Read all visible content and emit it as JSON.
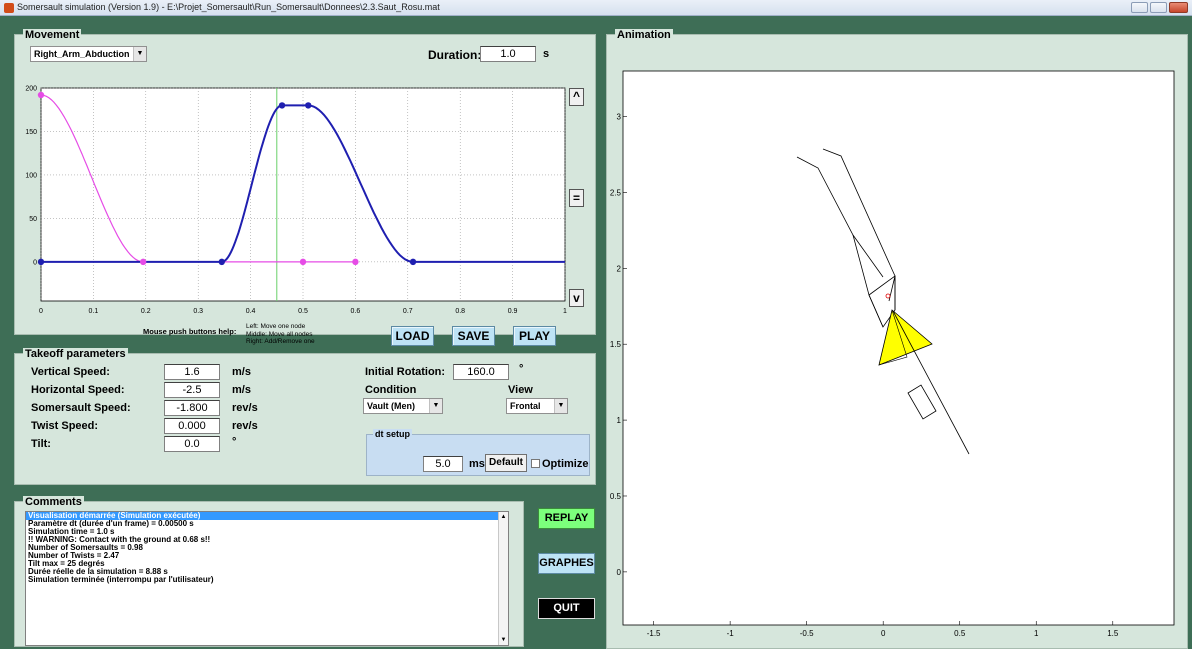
{
  "window": {
    "title": "Somersault simulation (Version 1.9) - E:\\Projet_Somersault\\Run_Somersault\\Donnees\\2.3.Saut_Rosu.mat"
  },
  "movement": {
    "panel_title": "Movement",
    "selected_movement": "Right_Arm_Abduction",
    "duration_label": "Duration:",
    "duration_value": "1.0",
    "duration_unit": "s",
    "scroll_up_label": "^",
    "scroll_mid_label": "=",
    "scroll_down_label": "v",
    "help_title": "Mouse push buttons help:",
    "help_lines": [
      "Left: Move one node",
      "Middle: Move all nodes",
      "Right: Add/Remove one"
    ],
    "load_label": "LOAD",
    "save_label": "SAVE",
    "play_label": "PLAY"
  },
  "chart_data": {
    "type": "line",
    "xlim": [
      0,
      1
    ],
    "ylim": [
      -45,
      200
    ],
    "x_ticks": [
      "0",
      "0.1",
      "0.2",
      "0.3",
      "0.4",
      "0.5",
      "0.6",
      "0.7",
      "0.8",
      "0.9",
      "1"
    ],
    "y_ticks": [
      "0",
      "50",
      "100",
      "150",
      "200"
    ],
    "grid": true,
    "cursor_x": 0.45,
    "series": [
      {
        "color": "#1f1fb0",
        "nodes": [
          [
            0,
            0
          ],
          [
            0.345,
            0
          ],
          [
            0.46,
            180
          ],
          [
            0.51,
            180
          ],
          [
            0.71,
            0
          ],
          [
            1,
            0
          ]
        ]
      },
      {
        "color": "#e64ce6",
        "nodes": [
          [
            0,
            192
          ],
          [
            0.195,
            0
          ],
          [
            0.5,
            0
          ],
          [
            0.6,
            0
          ]
        ]
      }
    ]
  },
  "takeoff": {
    "panel_title": "Takeoff parameters",
    "rows": [
      {
        "label": "Vertical Speed:",
        "value": "1.6",
        "unit": "m/s"
      },
      {
        "label": "Horizontal Speed:",
        "value": "-2.5",
        "unit": "m/s"
      },
      {
        "label": "Somersault Speed:",
        "value": "-1.800",
        "unit": "rev/s"
      },
      {
        "label": "Twist Speed:",
        "value": "0.000",
        "unit": "rev/s"
      },
      {
        "label": "Tilt:",
        "value": "0.0",
        "unit": "°"
      }
    ],
    "initial_rotation_label": "Initial Rotation:",
    "initial_rotation_value": "160.0",
    "initial_rotation_unit": "°",
    "condition_label": "Condition",
    "condition_value": "Vault (Men)",
    "view_label": "View",
    "view_value": "Frontal",
    "dt_title": "dt setup",
    "dt_value": "5.0",
    "dt_unit": "ms",
    "default_label": "Default",
    "optimize_label": "Optimize"
  },
  "comments": {
    "panel_title": "Comments",
    "lines": [
      "Visualisation démarrée (Simulation exécutée)",
      "Paramètre dt (durée d'un frame) = 0.00500 s",
      "Simulation time = 1.0 s",
      "!! WARNING: Contact with the ground at 0.68 s!!",
      "Number of Somersaults = 0.98",
      "Number of Twists     = 2.47",
      "Tilt max          = 25 degrés",
      "Durée réelle de la simulation = 8.88 s",
      "Simulation terminée (interrompu par l'utilisateur)"
    ]
  },
  "side_buttons": {
    "replay": "REPLAY",
    "graphes": "GRAPHES",
    "quit": "QUIT"
  },
  "animation": {
    "panel_title": "Animation",
    "x_ticks": [
      "-1.5",
      "-1",
      "-0.5",
      "0",
      "0.5",
      "1",
      "1.5"
    ],
    "y_ticks": [
      "0",
      "0.5",
      "1",
      "1.5",
      "2",
      "2.5",
      "3"
    ],
    "xlim": [
      -1.7,
      1.9
    ],
    "ylim": [
      -0.35,
      3.3
    ],
    "head_color": "#ffff00"
  }
}
